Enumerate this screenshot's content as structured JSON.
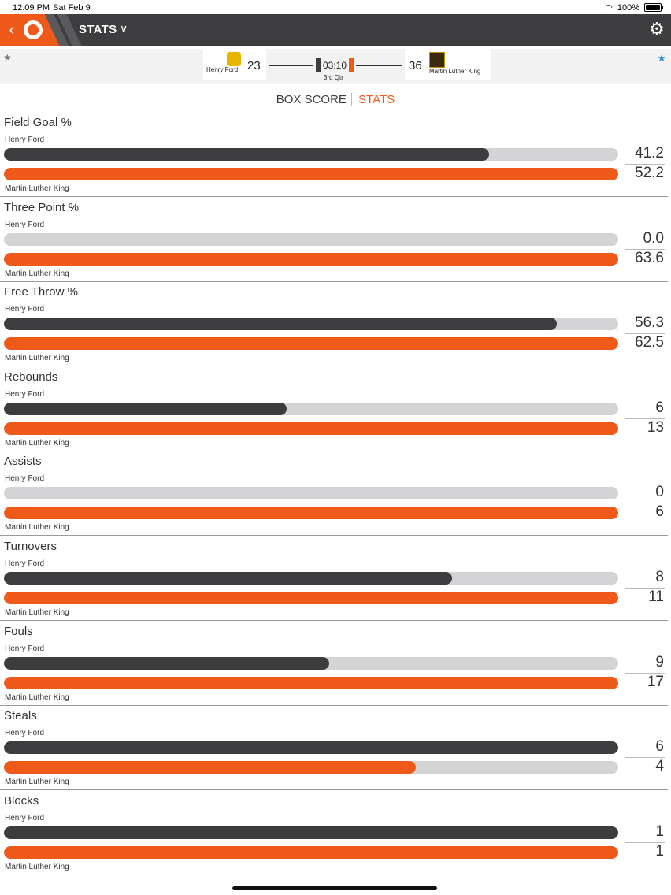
{
  "status_bar": {
    "time": "12:09 PM",
    "date": "Sat Feb 9",
    "battery": "100%"
  },
  "nav": {
    "title": "STATS"
  },
  "scoreboard": {
    "home": {
      "name": "Henry Ford",
      "score": "23"
    },
    "away": {
      "name": "Martin Luther King",
      "score": "36"
    },
    "clock": "03:10",
    "period": "3rd Qtr"
  },
  "tabs": {
    "box_score": "BOX SCORE",
    "stats": "STATS"
  },
  "colors": {
    "accent": "#ef5a1a",
    "dark": "#3d3d3f",
    "track": "#d4d4d6",
    "favorite": "#2a8fd6"
  },
  "stats": [
    {
      "title": "Field Goal %",
      "team_a": "Henry Ford",
      "team_b": "Martin Luther King",
      "a_value": "41.2",
      "b_value": "52.2",
      "a_fill": 0.79,
      "b_fill": 1.0
    },
    {
      "title": "Three Point %",
      "team_a": "Henry Ford",
      "team_b": "Martin Luther King",
      "a_value": "0.0",
      "b_value": "63.6",
      "a_fill": 0.0,
      "b_fill": 1.0
    },
    {
      "title": "Free Throw %",
      "team_a": "Henry Ford",
      "team_b": "Martin Luther King",
      "a_value": "56.3",
      "b_value": "62.5",
      "a_fill": 0.9,
      "b_fill": 1.0
    },
    {
      "title": "Rebounds",
      "team_a": "Henry Ford",
      "team_b": "Martin Luther King",
      "a_value": "6",
      "b_value": "13",
      "a_fill": 0.46,
      "b_fill": 1.0
    },
    {
      "title": "Assists",
      "team_a": "Henry Ford",
      "team_b": "Martin Luther King",
      "a_value": "0",
      "b_value": "6",
      "a_fill": 0.0,
      "b_fill": 1.0
    },
    {
      "title": "Turnovers",
      "team_a": "Henry Ford",
      "team_b": "Martin Luther King",
      "a_value": "8",
      "b_value": "11",
      "a_fill": 0.73,
      "b_fill": 1.0
    },
    {
      "title": "Fouls",
      "team_a": "Henry Ford",
      "team_b": "Martin Luther King",
      "a_value": "9",
      "b_value": "17",
      "a_fill": 0.53,
      "b_fill": 1.0
    },
    {
      "title": "Steals",
      "team_a": "Henry Ford",
      "team_b": "Martin Luther King",
      "a_value": "6",
      "b_value": "4",
      "a_fill": 1.0,
      "b_fill": 0.67
    },
    {
      "title": "Blocks",
      "team_a": "Henry Ford",
      "team_b": "Martin Luther King",
      "a_value": "1",
      "b_value": "1",
      "a_fill": 1.0,
      "b_fill": 1.0
    }
  ]
}
